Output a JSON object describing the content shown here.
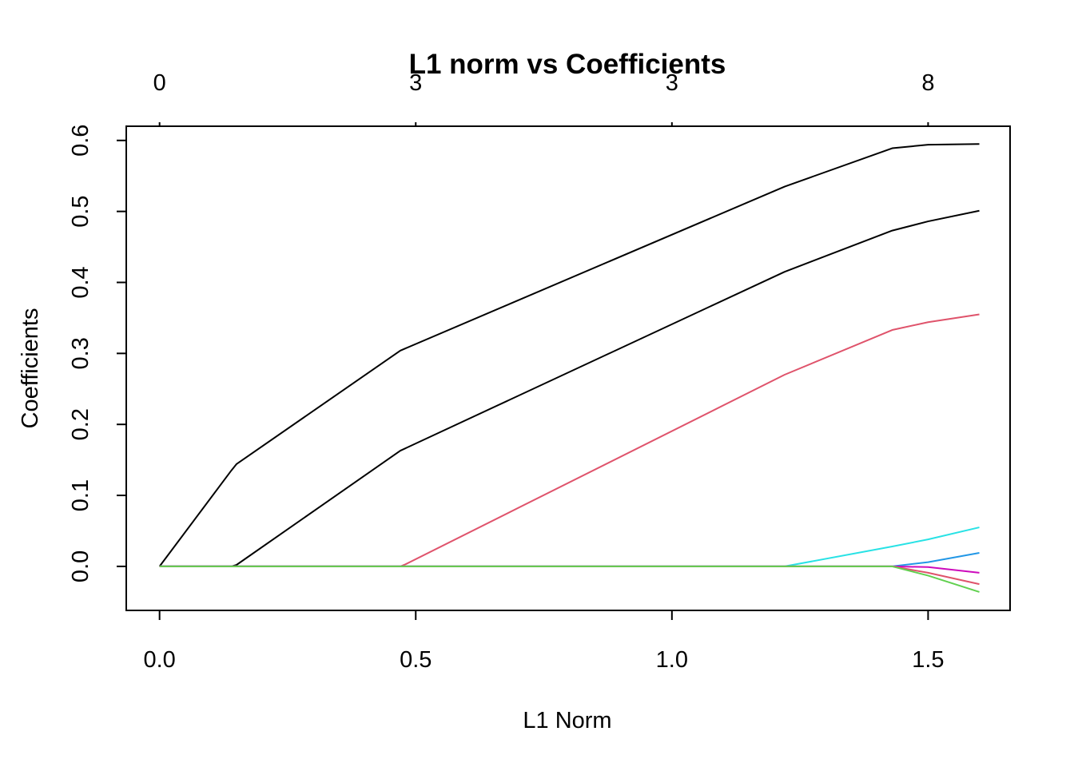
{
  "chart_data": {
    "type": "line",
    "title": "L1 norm vs Coefficients",
    "xlabel": "L1 Norm",
    "ylabel": "Coefficients",
    "xlim": [
      -0.065,
      1.66
    ],
    "ylim": [
      -0.062,
      0.62
    ],
    "x_ticks": [
      0.0,
      0.5,
      1.0,
      1.5
    ],
    "x_tick_labels": [
      "0.0",
      "0.5",
      "1.0",
      "1.5"
    ],
    "y_ticks": [
      0.0,
      0.1,
      0.2,
      0.3,
      0.4,
      0.5,
      0.6
    ],
    "y_tick_labels": [
      "0.0",
      "0.1",
      "0.2",
      "0.3",
      "0.4",
      "0.5",
      "0.6"
    ],
    "top_ticks": [
      0.0,
      0.5,
      1.0,
      1.5
    ],
    "top_tick_labels": [
      "0",
      "3",
      "3",
      "8"
    ],
    "grid": false,
    "legend": "none",
    "series": [
      {
        "color": "#000000",
        "points": [
          [
            0.0,
            0.0
          ],
          [
            0.14,
            0.135
          ],
          [
            0.15,
            0.144
          ],
          [
            0.47,
            0.304
          ],
          [
            1.22,
            0.535
          ],
          [
            1.43,
            0.589
          ],
          [
            1.5,
            0.594
          ],
          [
            1.6,
            0.595
          ]
        ]
      },
      {
        "color": "#000000",
        "points": [
          [
            0.0,
            0.0
          ],
          [
            0.14,
            0.0
          ],
          [
            0.15,
            0.002
          ],
          [
            0.47,
            0.163
          ],
          [
            1.22,
            0.415
          ],
          [
            1.43,
            0.473
          ],
          [
            1.5,
            0.486
          ],
          [
            1.6,
            0.501
          ]
        ]
      },
      {
        "color": "#DF536B",
        "points": [
          [
            0.0,
            0.0
          ],
          [
            0.47,
            0.0
          ],
          [
            0.48,
            0.003
          ],
          [
            1.22,
            0.27
          ],
          [
            1.43,
            0.333
          ],
          [
            1.5,
            0.344
          ],
          [
            1.6,
            0.355
          ]
        ]
      },
      {
        "color": "#28E2E5",
        "points": [
          [
            0.0,
            0.0
          ],
          [
            1.22,
            0.0
          ],
          [
            1.43,
            0.028
          ],
          [
            1.5,
            0.038
          ],
          [
            1.6,
            0.055
          ]
        ]
      },
      {
        "color": "#2297E6",
        "points": [
          [
            0.0,
            0.0
          ],
          [
            1.43,
            0.0
          ],
          [
            1.5,
            0.006
          ],
          [
            1.6,
            0.019
          ]
        ]
      },
      {
        "color": "#CD0BBC",
        "points": [
          [
            0.0,
            0.0
          ],
          [
            1.43,
            0.0
          ],
          [
            1.5,
            -0.001
          ],
          [
            1.6,
            -0.009
          ]
        ]
      },
      {
        "color": "#DF536B",
        "points": [
          [
            0.0,
            0.0
          ],
          [
            1.43,
            0.0
          ],
          [
            1.5,
            -0.009
          ],
          [
            1.6,
            -0.025
          ]
        ]
      },
      {
        "color": "#61D04F",
        "points": [
          [
            0.0,
            0.0
          ],
          [
            1.43,
            0.0
          ],
          [
            1.5,
            -0.013
          ],
          [
            1.6,
            -0.036
          ]
        ]
      }
    ]
  }
}
